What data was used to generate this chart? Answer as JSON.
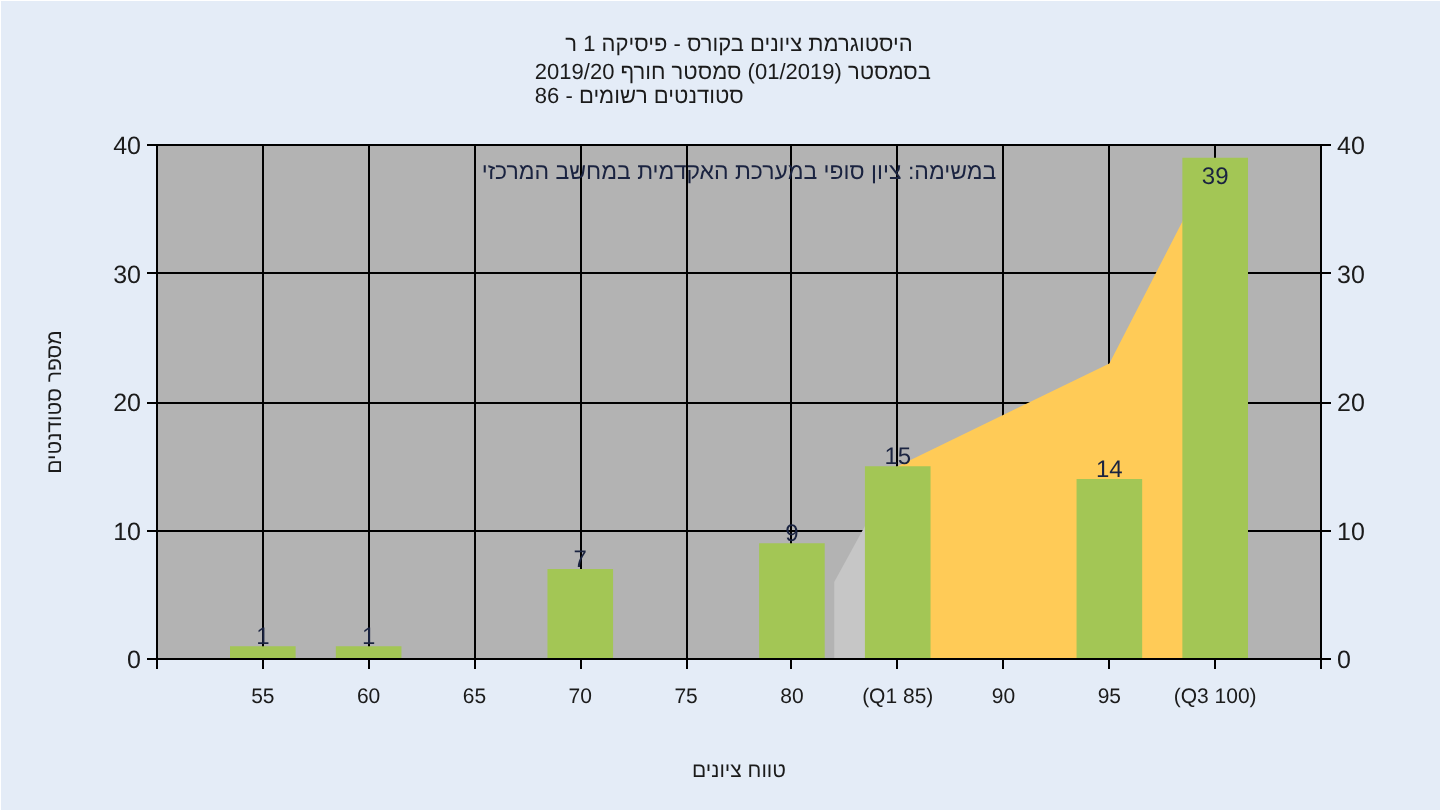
{
  "chart_data": {
    "type": "bar",
    "title": "היסטוגרמת ציונים בקורס - פיסיקה 1 ר",
    "subtitle": "בסמסטר  (01/2019)  סמסטר חורף 2019/20\nסטודנטים רשומים - 86",
    "xlabel": "טווח ציונים",
    "ylabel": "מספר סטודנטים",
    "annotations": [
      "במשימה: ציון סופי במערכת האקדמית במחשב המרכזי"
    ],
    "series": [
      {
        "type": "area",
        "color": "#c6c6c6",
        "x": [
          82,
          85
        ],
        "values": [
          6,
          15
        ]
      },
      {
        "type": "area",
        "color": "#ffcb57",
        "x": [
          85,
          95,
          100
        ],
        "values": [
          15,
          23,
          39
        ]
      },
      {
        "color": "#a3c655",
        "x": [
          55,
          60,
          70,
          80,
          85,
          95,
          100
        ],
        "values": [
          1,
          1,
          7,
          9,
          15,
          14,
          39
        ],
        "value_labels": [
          "1",
          "1",
          "7",
          "9",
          "15",
          "14",
          "39"
        ]
      }
    ],
    "xlim": [
      50,
      105
    ],
    "xticks": [
      {
        "value": 50,
        "label": null
      },
      55,
      60,
      65,
      70,
      75,
      80,
      {
        "value": 85,
        "label": "(Q1 85)"
      },
      90,
      95,
      {
        "value": 100,
        "label": "(Q3 100)"
      },
      {
        "value": 105,
        "label": null
      }
    ],
    "ylim": [
      0,
      40
    ],
    "yticks": [
      0,
      10,
      20,
      30,
      40
    ],
    "y2lim": [
      0,
      40
    ],
    "y2ticks": [
      0,
      10,
      20,
      30,
      40
    ],
    "grid": true
  }
}
